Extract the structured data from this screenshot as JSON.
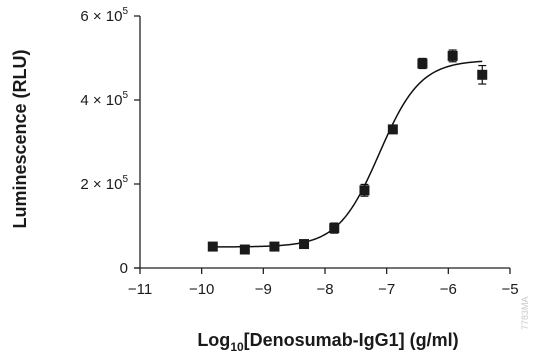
{
  "chart_data": {
    "type": "scatter",
    "title": "",
    "xlabel_prefix": "Log",
    "xlabel_subscript": "10",
    "xlabel_suffix": "[Denosumab-IgG1] (g/ml)",
    "ylabel": "Luminescence (RLU)",
    "xlim": [
      -11,
      -5
    ],
    "ylim": [
      0,
      600000
    ],
    "x_ticks": [
      -11,
      -10,
      -9,
      -8,
      -7,
      -6,
      -5
    ],
    "x_tick_labels": [
      "−11",
      "−10",
      "−9",
      "−8",
      "−7",
      "−6",
      "−5"
    ],
    "y_ticks": [
      0,
      200000,
      400000,
      600000
    ],
    "y_tick_labels": [
      {
        "base": "0",
        "exp": ""
      },
      {
        "base": "2 × 10",
        "exp": "5"
      },
      {
        "base": "4 × 10",
        "exp": "5"
      },
      {
        "base": "6 × 10",
        "exp": "5"
      }
    ],
    "grid": false,
    "series": [
      {
        "marker": "square",
        "x": [
          -9.82,
          -9.3,
          -8.82,
          -8.34,
          -7.85,
          -7.36,
          -6.9,
          -6.42,
          -5.93,
          -5.45
        ],
        "y": [
          51000,
          44000,
          51000,
          57000,
          95000,
          185000,
          330000,
          487000,
          505000,
          460000
        ],
        "error": [
          4000,
          4000,
          4000,
          4000,
          12000,
          14000,
          8000,
          12000,
          14000,
          22000
        ]
      }
    ],
    "fit_curve": {
      "type": "4-parameter logistic",
      "bottom": 50000,
      "top": 495000,
      "logEC50": -7.12,
      "hill_slope": 1.3
    },
    "watermark": "7783MA"
  }
}
